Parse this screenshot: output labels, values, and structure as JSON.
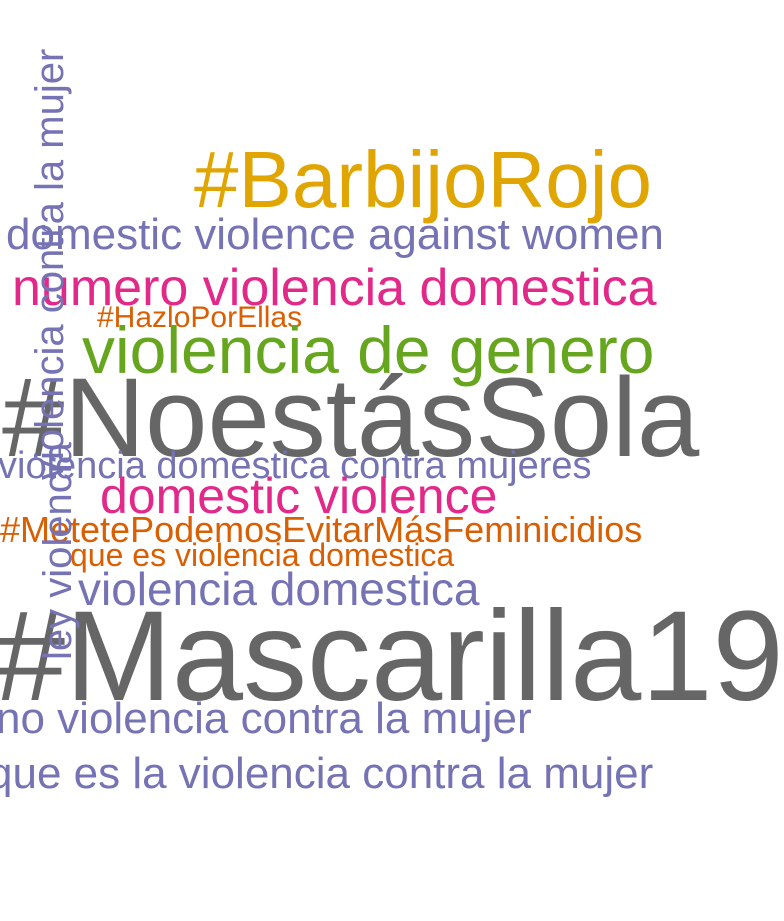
{
  "palette": {
    "gold": "#e0a500",
    "slate": "#7573b4",
    "magenta": "#e2298a",
    "orange": "#d95f02",
    "green": "#66a61e",
    "gray": "#666666"
  },
  "words": [
    {
      "text": "#BarbijoRojo",
      "color": "#e0a500"
    },
    {
      "text": "domestic violence against women",
      "color": "#7573b4"
    },
    {
      "text": "numero violencia domestica",
      "color": "#e2298a"
    },
    {
      "text": "#HazloPorEllas",
      "color": "#d95f02"
    },
    {
      "text": "violencia de genero",
      "color": "#66a61e"
    },
    {
      "text": "#NoestásSola",
      "color": "#666666"
    },
    {
      "text": "violencia domestica contra mujeres",
      "color": "#7573b4"
    },
    {
      "text": "domestic violence",
      "color": "#e2298a"
    },
    {
      "text": "#MetetePodemosEvitarMásFeminicidios",
      "color": "#d95f02"
    },
    {
      "text": "que es violencia domestica",
      "color": "#d95f02"
    },
    {
      "text": "violencia domestica",
      "color": "#7573b4"
    },
    {
      "text": "#Mascarilla19",
      "color": "#666666"
    },
    {
      "text": "no violencia contra la mujer",
      "color": "#7573b4"
    },
    {
      "text": "que es la violencia contra la mujer",
      "color": "#7573b4"
    },
    {
      "text": "violencia contra la mujer",
      "color": "#7573b4"
    },
    {
      "text": "ley violencia",
      "color": "#7573b4"
    }
  ]
}
